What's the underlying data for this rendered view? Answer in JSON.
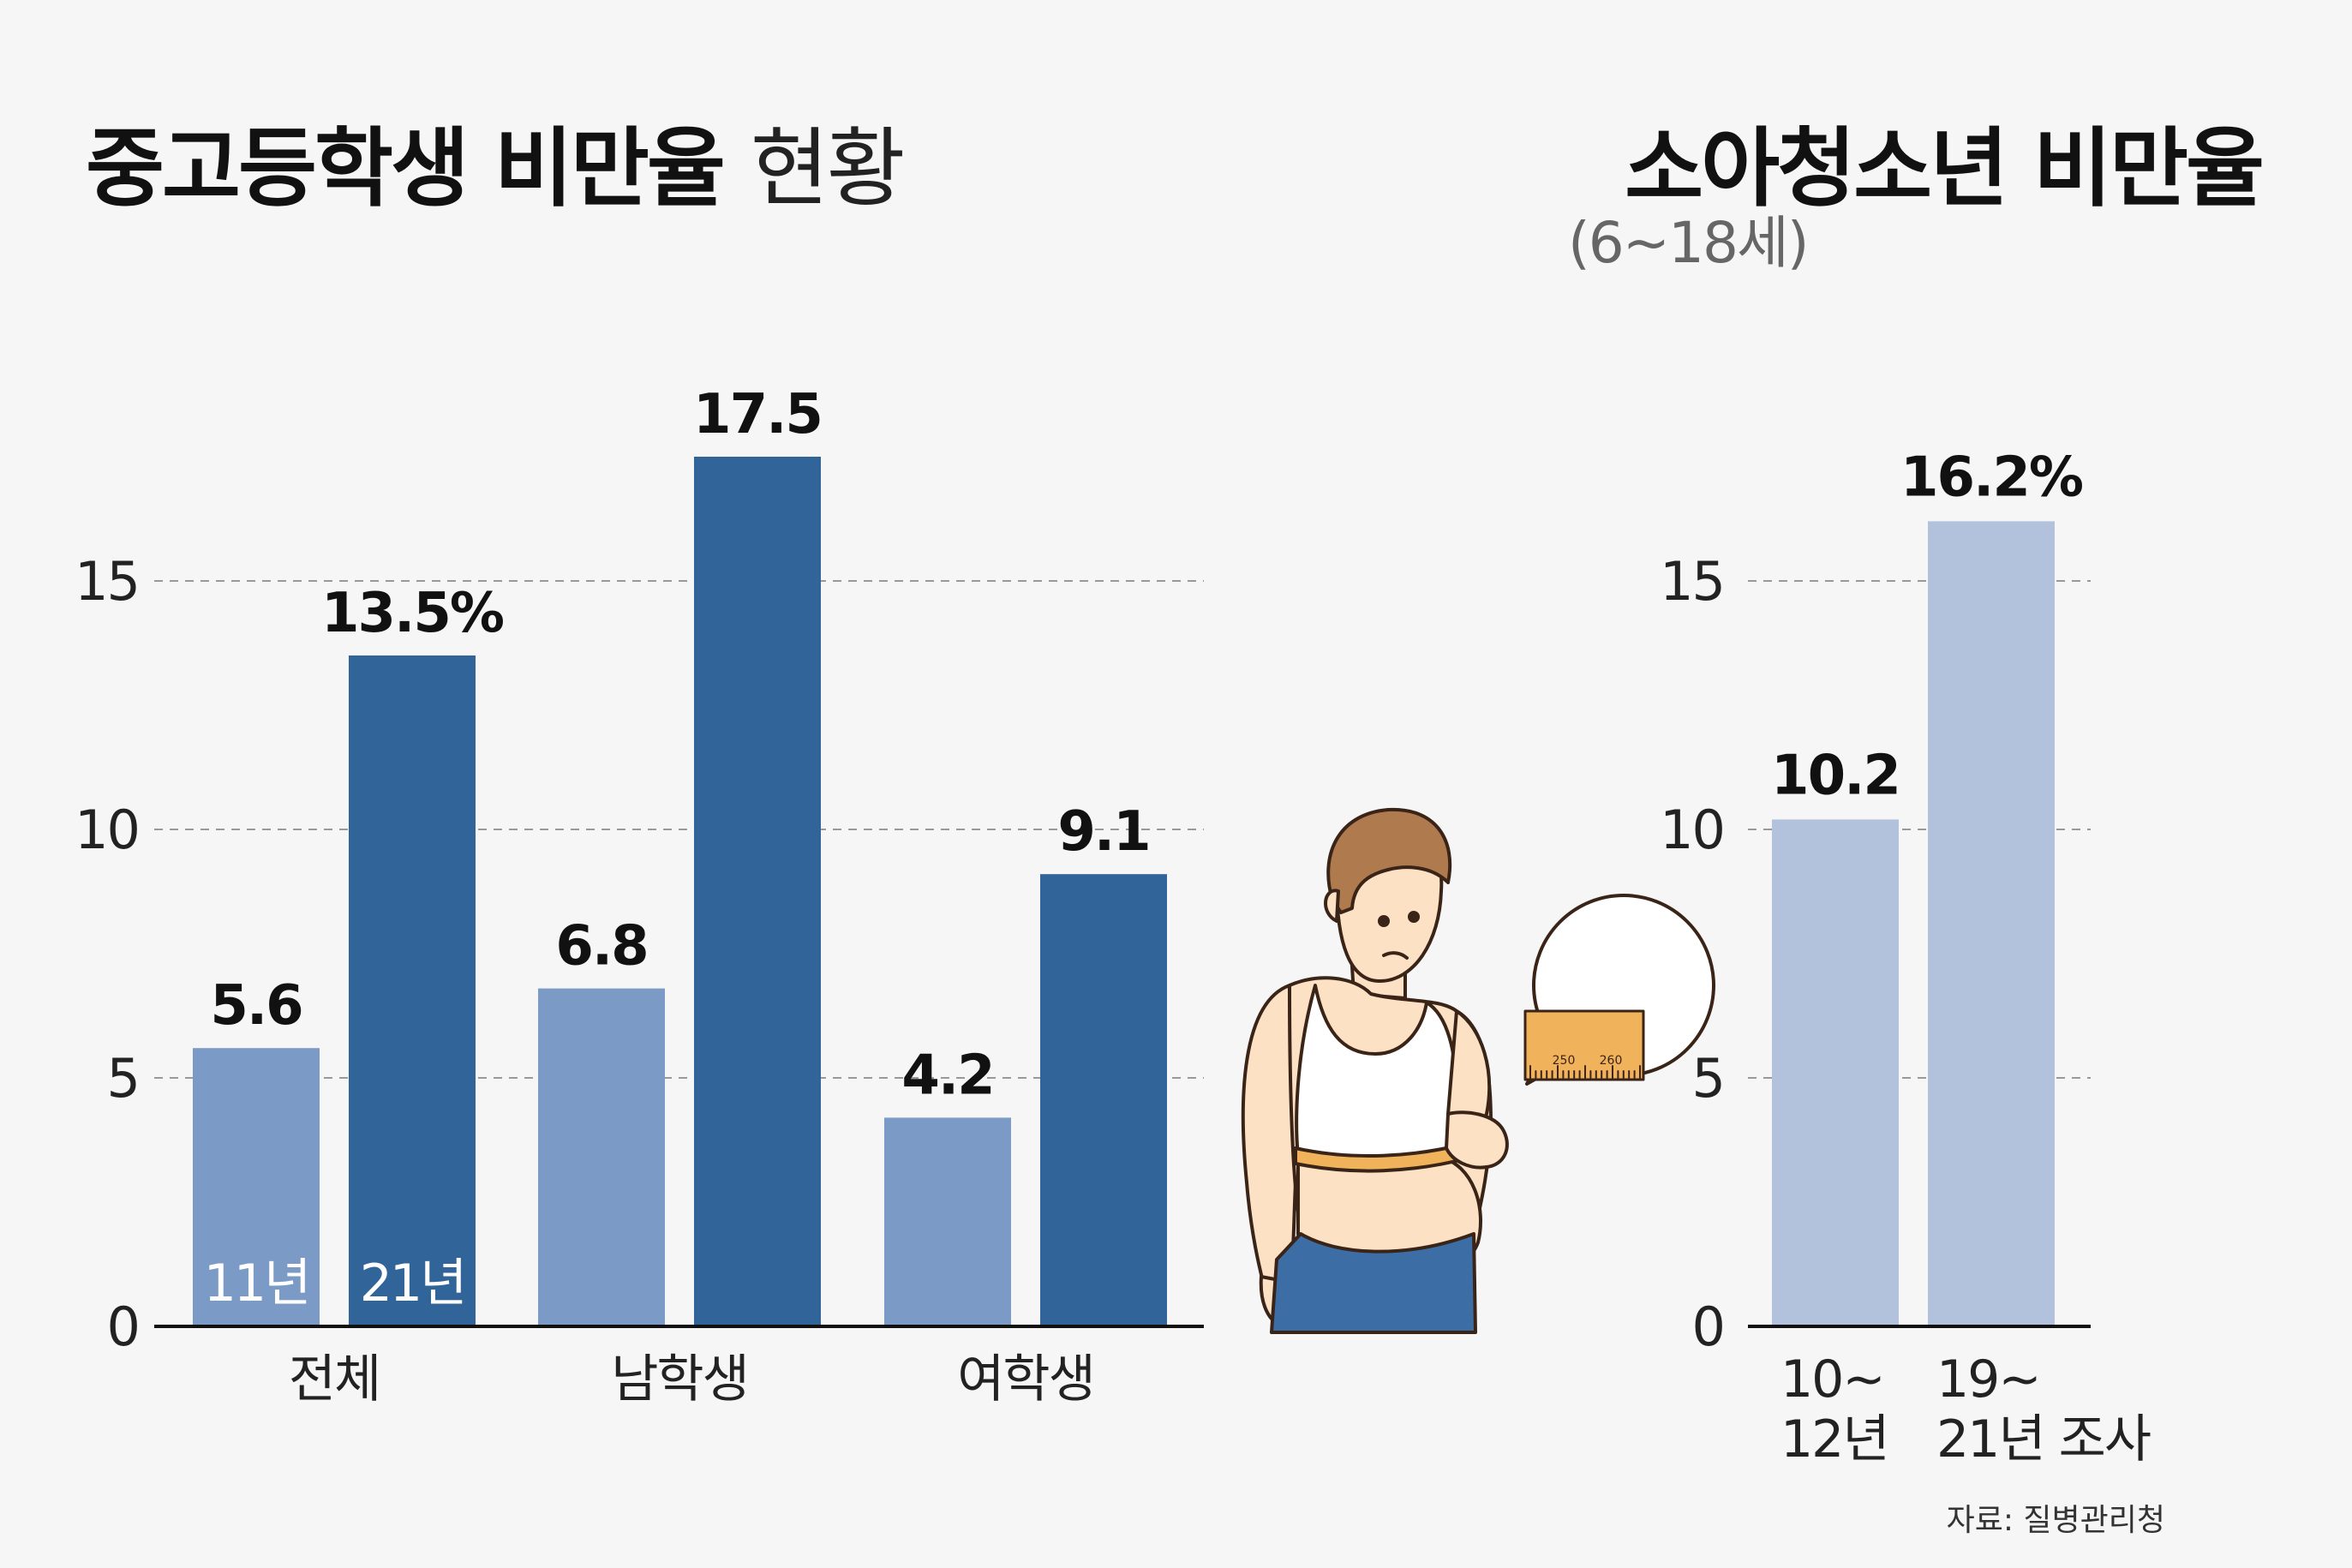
{
  "left_title": {
    "bold": "중고등학생 비만율",
    "light": "현황"
  },
  "right_title": "소아청소년 비만율",
  "right_subtitle": "(6~18세)",
  "source": "자료: 질병관리청",
  "colors": {
    "light_bar": "#7b9bc6",
    "dark_bar": "#316498",
    "pale_bar": "#b2c2dc"
  },
  "chart_data": [
    {
      "type": "bar",
      "title": "중고등학생 비만율 현황",
      "categories": [
        "전체",
        "남학생",
        "여학생"
      ],
      "series": [
        {
          "name": "11년",
          "values": [
            5.6,
            6.8,
            4.2
          ],
          "labels": [
            "5.6",
            "6.8",
            "4.2"
          ],
          "color": "#7b9bc6"
        },
        {
          "name": "21년",
          "values": [
            13.5,
            17.5,
            9.1
          ],
          "labels": [
            "13.5%",
            "17.5",
            "9.1"
          ],
          "color": "#316498"
        }
      ],
      "yticks": [
        "0",
        "5",
        "10",
        "15"
      ],
      "ylim": [
        0,
        17.5
      ],
      "grid": true
    },
    {
      "type": "bar",
      "title": "소아청소년 비만율",
      "subtitle": "(6~18세)",
      "categories": [
        [
          "10~",
          "12년"
        ],
        [
          "19~",
          "21년 조사"
        ]
      ],
      "values": [
        10.2,
        16.2
      ],
      "labels": [
        "10.2",
        "16.2%"
      ],
      "color": "#b2c2dc",
      "yticks": [
        "0",
        "5",
        "10",
        "15"
      ],
      "ylim": [
        0,
        16.2
      ],
      "grid": true
    }
  ],
  "illustration": {
    "tape_marks": [
      "250",
      "260"
    ]
  }
}
